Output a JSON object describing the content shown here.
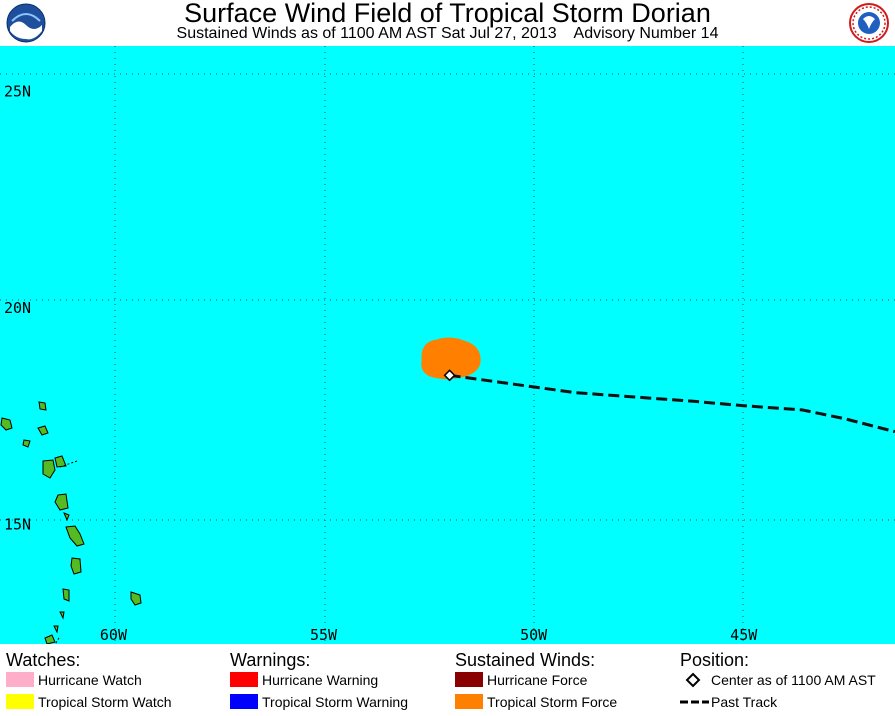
{
  "header": {
    "title": "Surface Wind Field of Tropical Storm Dorian",
    "subtitle": "Sustained Winds as of 1100 AM AST Sat Jul 27, 2013    Advisory Number 14",
    "logo_left_text": "NOAA",
    "logo_right_text": "NATIONAL WEATHER SERVICE"
  },
  "map": {
    "ocean_color": "#00ffff",
    "land_color": "#55bb22",
    "lat_labels": [
      "25N",
      "20N",
      "15N"
    ],
    "lon_labels": [
      "60W",
      "55W",
      "50W",
      "45W"
    ],
    "lon_range": [
      -62.7,
      -41.4
    ],
    "lat_range": [
      12.2,
      26.0
    ],
    "center": {
      "lat": 18.4,
      "lon": -52.0
    },
    "ts_force_color": "#ff8000",
    "past_track": [
      [
        -52.0,
        18.4
      ],
      [
        -50.5,
        18.2
      ],
      [
        -49.0,
        18.0
      ],
      [
        -47.6,
        17.9
      ],
      [
        -46.2,
        17.8
      ],
      [
        -45.0,
        17.7
      ],
      [
        -43.6,
        17.6
      ],
      [
        -42.6,
        17.4
      ],
      [
        -41.4,
        17.1
      ]
    ]
  },
  "legend": {
    "watches": {
      "heading": "Watches:",
      "items": [
        {
          "label": "Hurricane Watch",
          "color": "#ffaec9"
        },
        {
          "label": "Tropical Storm Watch",
          "color": "#ffff00"
        }
      ]
    },
    "warnings": {
      "heading": "Warnings:",
      "items": [
        {
          "label": "Hurricane Warning",
          "color": "#ff0000"
        },
        {
          "label": "Tropical Storm Warning",
          "color": "#0000ff"
        }
      ]
    },
    "winds": {
      "heading": "Sustained Winds:",
      "items": [
        {
          "label": "Hurricane Force",
          "color": "#880000"
        },
        {
          "label": "Tropical Storm Force",
          "color": "#ff8000"
        }
      ]
    },
    "position": {
      "heading": "Position:",
      "items": [
        {
          "label": "Center as of 1100 AM AST",
          "icon": "diamond-icon"
        },
        {
          "label": "Past Track",
          "icon": "dashed-line-icon"
        }
      ]
    }
  }
}
